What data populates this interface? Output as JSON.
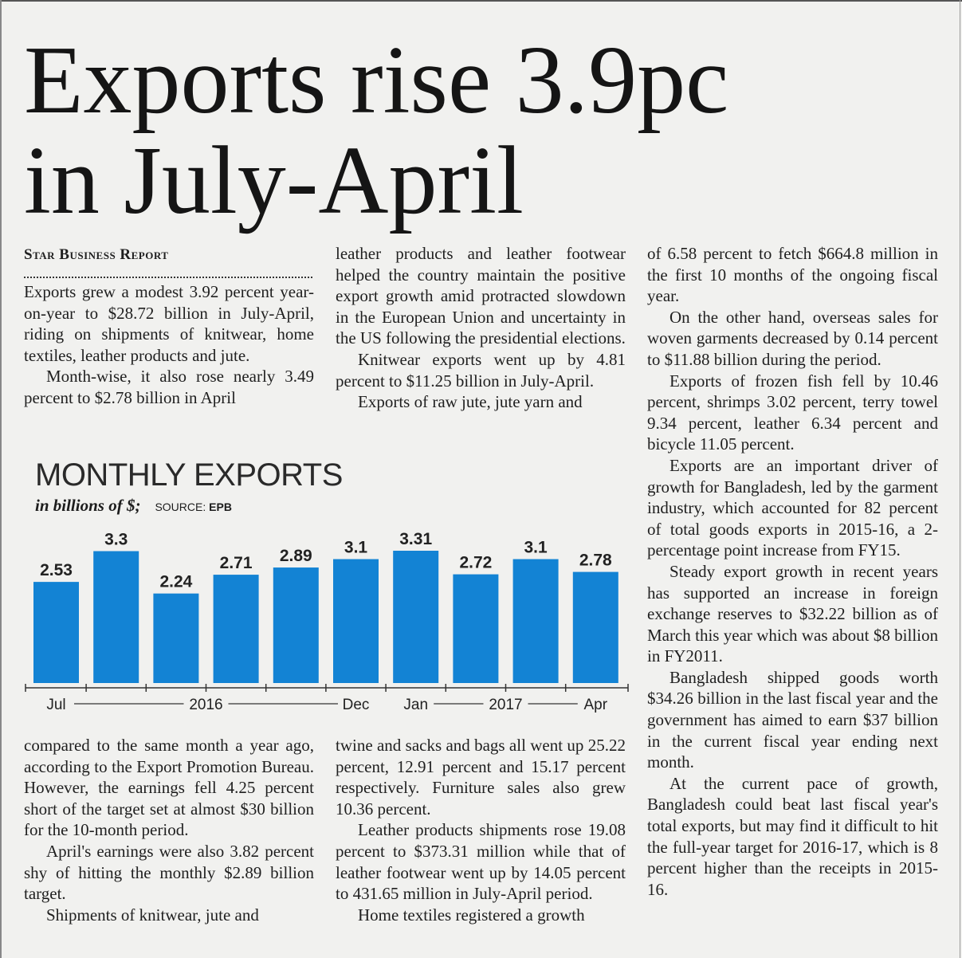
{
  "headline": {
    "line1": "Exports rise 3.9pc",
    "line2": "in July-April"
  },
  "byline": "Star Business Report",
  "column1": {
    "top": [
      "Exports grew a modest 3.92 percent year-on-year to $28.72 billion in July-April, riding on shipments of knitwear, home textiles, leather products and jute.",
      "Month-wise, it also rose nearly 3.49 percent to $2.78 billion in April"
    ],
    "bottom": [
      "compared to the same month a year ago, according to the Export Promotion Bureau. However, the earnings fell 4.25 percent short of the target set at almost $30 billion for the 10-month period.",
      "April's earnings were also 3.82 percent shy of hitting the monthly $2.89 billion target.",
      "Shipments of knitwear, jute and"
    ]
  },
  "column2": {
    "top": [
      "leather products and leather footwear helped the country maintain the positive export growth amid protracted slowdown in the European Union and uncertainty in the US following the presidential elections.",
      "Knitwear exports went up by 4.81 percent to $11.25 billion in July-April.",
      "Exports of raw jute, jute yarn and"
    ],
    "bottom": [
      "twine and sacks and bags all went up 25.22 percent, 12.91 percent and 15.17 percent respectively. Furniture sales also grew 10.36 percent.",
      "Leather products shipments rose 19.08 percent to $373.31 million while that of leather footwear went up by 14.05 percent to 431.65 million in July-April period.",
      "Home textiles registered a growth"
    ]
  },
  "column3": [
    "of 6.58 percent to fetch $664.8 million in the first 10 months of the ongoing fiscal year.",
    "On the other hand, overseas sales for woven garments decreased by 0.14 percent to $11.88 billion during the period.",
    "Exports of frozen fish fell by 10.46 percent, shrimps 3.02 percent, terry towel 9.34 percent, leather 6.34 percent and bicycle 11.05 percent.",
    "Exports are an important driver of growth for Bangladesh, led by the garment industry, which accounted for 82 percent of total goods exports in 2015-16, a 2-percentage point increase from FY15.",
    "Steady export growth in recent years has supported an increase in foreign exchange reserves to $32.22 billion as of March this year which was about $8 billion in FY2011.",
    "Bangladesh shipped goods worth $34.26 billion in the last fiscal year and the government has aimed to earn $37 billion in the current fiscal year ending next month.",
    "At the current pace of growth, Bangladesh could beat last fiscal year's total exports, but may find it difficult to hit the full-year target for 2016-17, which is 8 percent higher than the receipts in 2015-16."
  ],
  "chart_data": {
    "type": "bar",
    "title": "MONTHLY EXPORTS",
    "unit": "in billions of $;",
    "source_label": "SOURCE:",
    "source_name": "EPB",
    "values": [
      2.53,
      3.3,
      2.24,
      2.71,
      2.89,
      3.1,
      3.31,
      2.72,
      3.1,
      2.78
    ],
    "value_labels": [
      "2.53",
      "3.3",
      "2.24",
      "2.71",
      "2.89",
      "3.1",
      "3.31",
      "2.72",
      "3.1",
      "2.78"
    ],
    "axis_labels": [
      {
        "label": "Jul",
        "at": 0
      },
      {
        "label": "2016",
        "at": 2.5
      },
      {
        "label": "Dec",
        "at": 5
      },
      {
        "label": "Jan",
        "at": 6
      },
      {
        "label": "2017",
        "at": 7.5
      },
      {
        "label": "Apr",
        "at": 9
      }
    ],
    "bar_color": "#1383d4",
    "grid": false
  }
}
